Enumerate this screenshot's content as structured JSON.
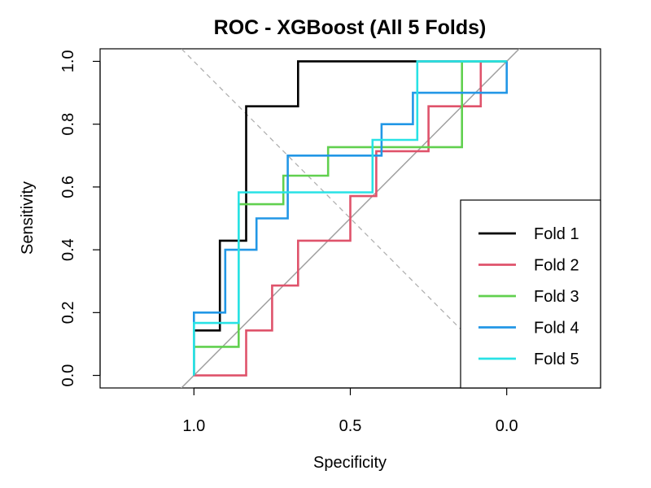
{
  "chart_data": {
    "type": "line",
    "title": "ROC - XGBoost (All 5 Folds)",
    "xlabel": "Specificity",
    "ylabel": "Sensitivity",
    "x_reversed": true,
    "xlim": [
      1.3,
      -0.3
    ],
    "ylim": [
      -0.04,
      1.04
    ],
    "xticks": [
      1.0,
      0.5,
      0.0
    ],
    "xtick_labels": [
      "1.0",
      "0.5",
      "0.0"
    ],
    "yticks": [
      0.0,
      0.2,
      0.4,
      0.6,
      0.8,
      1.0
    ],
    "ytick_labels": [
      "0.0",
      "0.2",
      "0.4",
      "0.6",
      "0.8",
      "1.0"
    ],
    "reference_lines": [
      {
        "name": "chance diagonal",
        "color": "#a0a0a0",
        "style": "solid"
      },
      {
        "name": "anti-diagonal",
        "color": "#b0b0b0",
        "style": "dashed"
      }
    ],
    "legend_position": "bottom-right",
    "series": [
      {
        "name": "Fold 1",
        "color": "#000000",
        "x": [
          1.0,
          1.0,
          0.917,
          0.917,
          0.833,
          0.833,
          0.667,
          0.667,
          0.0
        ],
        "y": [
          0.0,
          0.143,
          0.143,
          0.429,
          0.429,
          0.857,
          0.857,
          1.0,
          1.0
        ]
      },
      {
        "name": "Fold 2",
        "color": "#df536b",
        "x": [
          1.0,
          1.0,
          0.833,
          0.833,
          0.75,
          0.75,
          0.667,
          0.667,
          0.5,
          0.5,
          0.417,
          0.417,
          0.25,
          0.25,
          0.167,
          0.167,
          0.083,
          0.083
        ],
        "y": [
          0.0,
          0.0,
          0.0,
          0.143,
          0.143,
          0.286,
          0.286,
          0.429,
          0.429,
          0.571,
          0.571,
          0.714,
          0.714,
          0.857,
          0.857,
          0.857,
          0.857,
          1.0
        ]
      },
      {
        "name": "Fold 3",
        "color": "#61d04f",
        "x": [
          1.0,
          1.0,
          0.857,
          0.857,
          0.714,
          0.714,
          0.571,
          0.571,
          0.143,
          0.143,
          0.0
        ],
        "y": [
          0.0,
          0.091,
          0.091,
          0.545,
          0.545,
          0.636,
          0.636,
          0.727,
          0.727,
          1.0,
          1.0
        ]
      },
      {
        "name": "Fold 4",
        "color": "#2297e6",
        "x": [
          1.0,
          1.0,
          0.9,
          0.9,
          0.8,
          0.8,
          0.7,
          0.7,
          0.4,
          0.4,
          0.3,
          0.3,
          0.2,
          0.2,
          0.0,
          0.0
        ],
        "y": [
          0.0,
          0.2,
          0.2,
          0.4,
          0.4,
          0.5,
          0.5,
          0.7,
          0.7,
          0.8,
          0.8,
          0.9,
          0.9,
          0.9,
          0.9,
          1.0
        ]
      },
      {
        "name": "Fold 5",
        "color": "#28e2e5",
        "x": [
          1.0,
          1.0,
          0.857,
          0.857,
          0.429,
          0.429,
          0.286,
          0.286,
          0.0
        ],
        "y": [
          0.0,
          0.167,
          0.167,
          0.583,
          0.583,
          0.75,
          0.75,
          1.0,
          1.0
        ]
      }
    ]
  }
}
